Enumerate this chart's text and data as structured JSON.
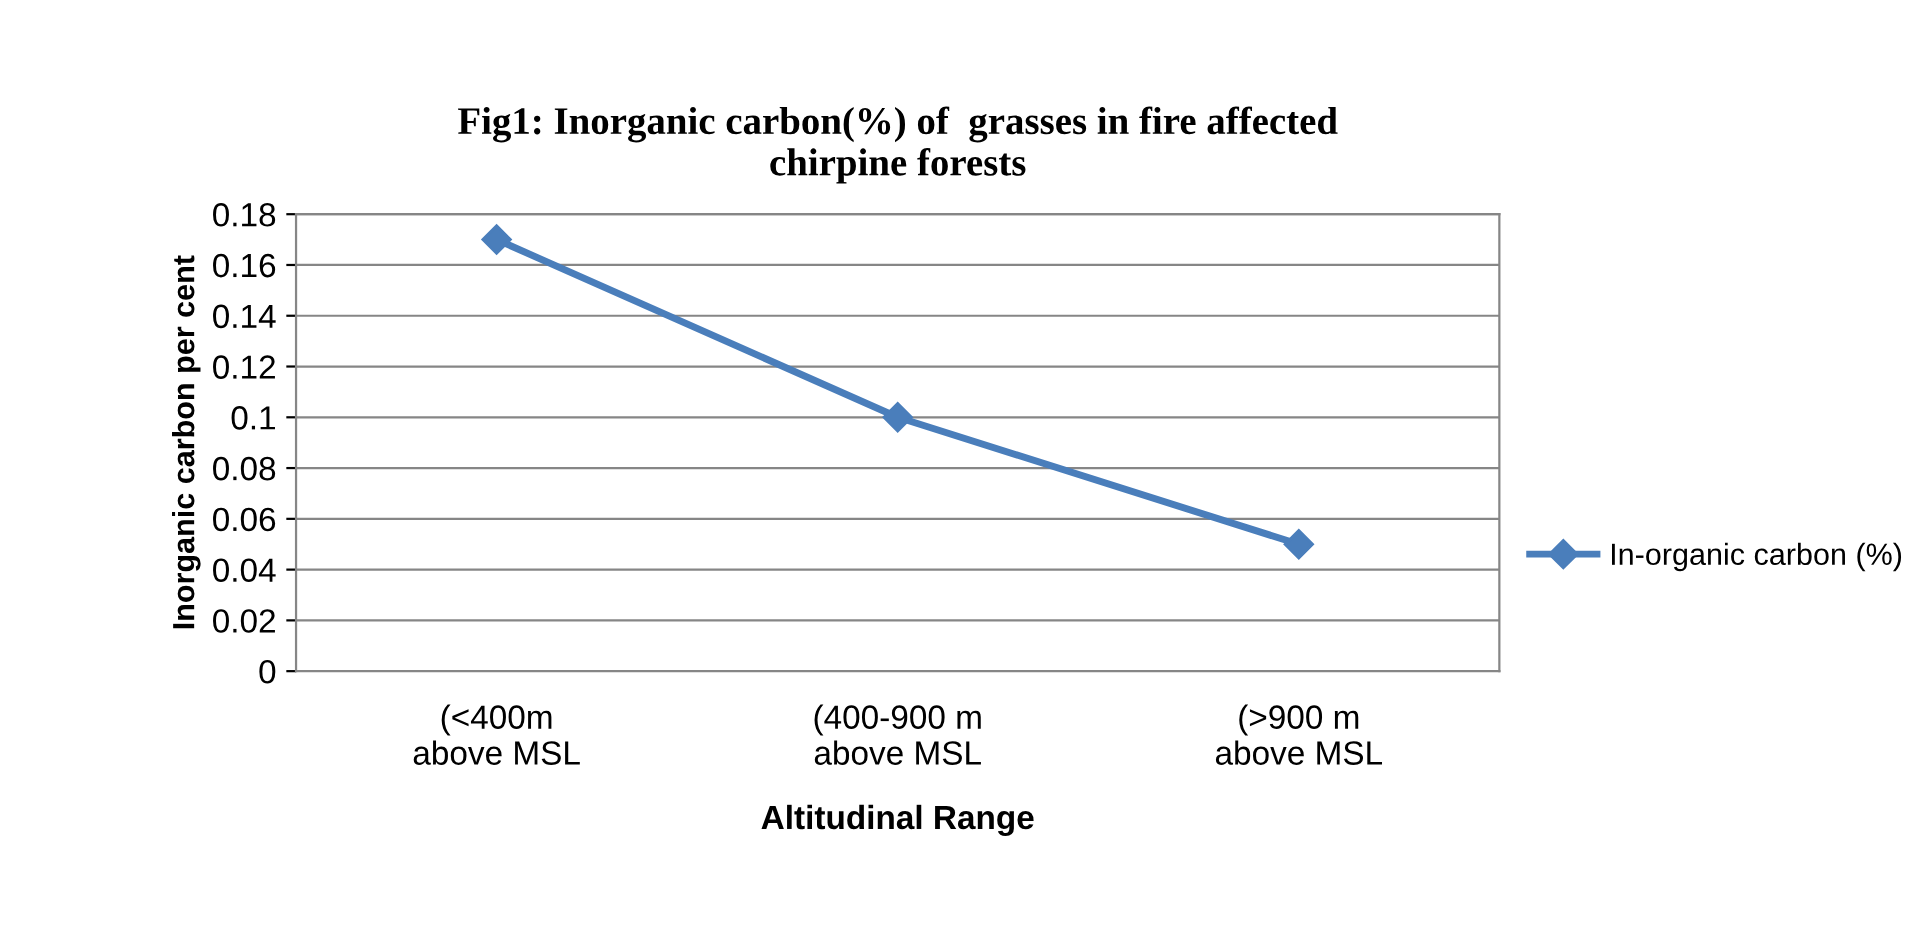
{
  "chart_data": {
    "type": "line",
    "title": "Fig1: Inorganic carbon(%) of  grasses in fire affected\nchirpine forests",
    "xlabel": "Altitudinal Range",
    "ylabel": "Inorganic carbon per cent",
    "categories": [
      "(<400m\nabove MSL",
      "(400-900 m\nabove MSL",
      "(>900 m\nabove MSL"
    ],
    "series": [
      {
        "name": "In-organic carbon (%)",
        "color": "#4a7ebb",
        "values": [
          0.17,
          0.1,
          0.05
        ]
      }
    ],
    "ylim": [
      0,
      0.18
    ],
    "yticks": [
      0,
      0.02,
      0.04,
      0.06,
      0.08,
      0.1,
      0.12,
      0.14,
      0.16,
      0.18
    ],
    "grid": "y",
    "legend": "right",
    "marker": "diamond",
    "line_style": "solid"
  }
}
